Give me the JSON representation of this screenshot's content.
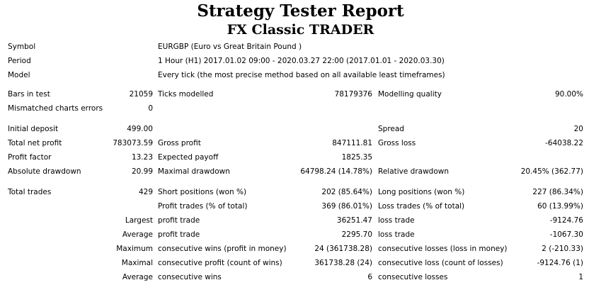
{
  "title": "Strategy Tester Report",
  "subtitle": "FX Classic TRADER",
  "info": {
    "symbol_label": "Symbol",
    "symbol_value": "EURGBP (Euro vs Great Britain Pound )",
    "period_label": "Period",
    "period_value": "1 Hour (H1) 2017.01.02 09:00 - 2020.03.27 22:00 (2017.01.01 - 2020.03.30)",
    "model_label": "Model",
    "model_value": "Every tick (the most precise method based on all available least timeframes)"
  },
  "bars": {
    "bars_label": "Bars in test",
    "bars_value": "21059",
    "ticks_label": "Ticks modelled",
    "ticks_value": "78179376",
    "quality_label": "Modelling quality",
    "quality_value": "90.00%",
    "mismatch_label": "Mismatched charts errors",
    "mismatch_value": "0"
  },
  "results": {
    "initial_deposit_label": "Initial deposit",
    "initial_deposit_value": "499.00",
    "spread_label": "Spread",
    "spread_value": "20",
    "net_profit_label": "Total net profit",
    "net_profit_value": "783073.59",
    "gross_profit_label": "Gross profit",
    "gross_profit_value": "847111.81",
    "gross_loss_label": "Gross loss",
    "gross_loss_value": "-64038.22",
    "profit_factor_label": "Profit factor",
    "profit_factor_value": "13.23",
    "expected_payoff_label": "Expected payoff",
    "expected_payoff_value": "1825.35",
    "abs_drawdown_label": "Absolute drawdown",
    "abs_drawdown_value": "20.99",
    "max_drawdown_label": "Maximal drawdown",
    "max_drawdown_value": "64798.24 (14.78%)",
    "rel_drawdown_label": "Relative drawdown",
    "rel_drawdown_value": "20.45% (362.77)"
  },
  "trades": {
    "total_label": "Total trades",
    "total_value": "429",
    "short_label": "Short positions (won %)",
    "short_value": "202 (85.64%)",
    "long_label": "Long positions (won %)",
    "long_value": "227 (86.34%)",
    "profit_trades_label": "Profit trades (% of total)",
    "profit_trades_value": "369 (86.01%)",
    "loss_trades_label": "Loss trades (% of total)",
    "loss_trades_value": "60 (13.99%)",
    "largest_label": "Largest",
    "largest_profit_label": "profit trade",
    "largest_profit_value": "36251.47",
    "largest_loss_label": "loss trade",
    "largest_loss_value": "-9124.76",
    "average_label": "Average",
    "average_profit_label": "profit trade",
    "average_profit_value": "2295.70",
    "average_loss_label": "loss trade",
    "average_loss_value": "-1067.30",
    "maximum_label": "Maximum",
    "max_cons_wins_label": "consecutive wins (profit in money)",
    "max_cons_wins_value": "24 (361738.28)",
    "max_cons_losses_label": "consecutive losses (loss in money)",
    "max_cons_losses_value": "2 (-210.33)",
    "maximal_label": "Maximal",
    "maximal_cons_profit_label": "consecutive profit (count of wins)",
    "maximal_cons_profit_value": "361738.28 (24)",
    "maximal_cons_loss_label": "consecutive loss (count of losses)",
    "maximal_cons_loss_value": "-9124.76 (1)",
    "avg_label": "Average",
    "avg_cons_wins_label": "consecutive wins",
    "avg_cons_wins_value": "6",
    "avg_cons_losses_label": "consecutive losses",
    "avg_cons_losses_value": "1"
  }
}
